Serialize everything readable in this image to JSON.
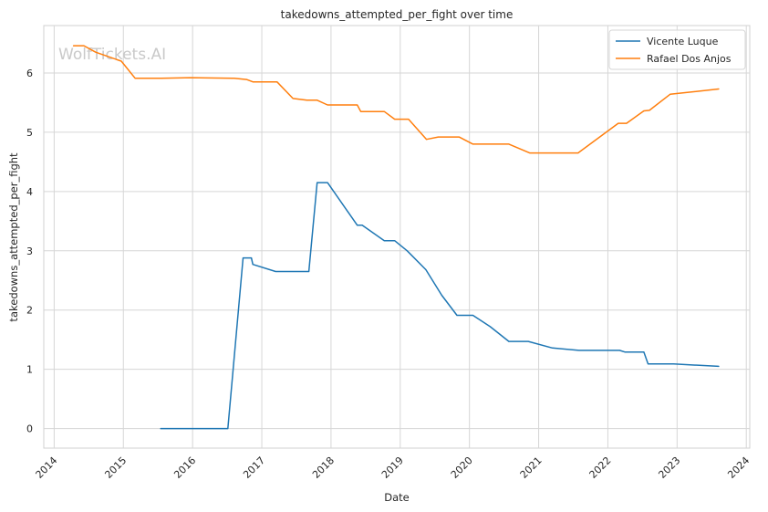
{
  "chart_data": {
    "type": "line",
    "title": "takedowns_attempted_per_fight over time",
    "xlabel": "Date",
    "ylabel": "takedowns_attempted_per_fight",
    "watermark": "WolfTickets.AI",
    "xlim": [
      2013.85,
      2024.05
    ],
    "ylim": [
      -0.33,
      6.8
    ],
    "x_ticks": [
      2014,
      2015,
      2016,
      2017,
      2018,
      2019,
      2020,
      2021,
      2022,
      2023,
      2024
    ],
    "x_tick_labels": [
      "2014",
      "2015",
      "2016",
      "2017",
      "2018",
      "2019",
      "2020",
      "2021",
      "2022",
      "2023",
      "2024"
    ],
    "y_ticks": [
      0,
      1,
      2,
      3,
      4,
      5,
      6
    ],
    "y_tick_labels": [
      "0",
      "1",
      "2",
      "3",
      "4",
      "5",
      "6"
    ],
    "grid": true,
    "legend": "top-right",
    "series": [
      {
        "name": "Vicente Luque",
        "color": "#1f77b4",
        "points": [
          [
            2015.54,
            0
          ],
          [
            2016.51,
            0
          ],
          [
            2016.73,
            2.88
          ],
          [
            2016.85,
            2.88
          ],
          [
            2016.87,
            2.77
          ],
          [
            2017.2,
            2.65
          ],
          [
            2017.68,
            2.65
          ],
          [
            2017.8,
            4.15
          ],
          [
            2017.95,
            4.15
          ],
          [
            2018.38,
            3.43
          ],
          [
            2018.45,
            3.43
          ],
          [
            2018.77,
            3.17
          ],
          [
            2018.92,
            3.17
          ],
          [
            2019.1,
            3.0
          ],
          [
            2019.37,
            2.68
          ],
          [
            2019.6,
            2.25
          ],
          [
            2019.82,
            1.91
          ],
          [
            2020.05,
            1.91
          ],
          [
            2020.3,
            1.72
          ],
          [
            2020.57,
            1.47
          ],
          [
            2020.85,
            1.47
          ],
          [
            2021.2,
            1.36
          ],
          [
            2021.58,
            1.32
          ],
          [
            2022.17,
            1.32
          ],
          [
            2022.25,
            1.29
          ],
          [
            2022.52,
            1.29
          ],
          [
            2022.58,
            1.09
          ],
          [
            2022.95,
            1.09
          ],
          [
            2023.6,
            1.05
          ]
        ]
      },
      {
        "name": "Rafael Dos Anjos",
        "color": "#ff7f0e",
        "points": [
          [
            2014.28,
            6.46
          ],
          [
            2014.43,
            6.46
          ],
          [
            2014.6,
            6.35
          ],
          [
            2014.97,
            6.2
          ],
          [
            2015.17,
            5.91
          ],
          [
            2015.55,
            5.91
          ],
          [
            2015.97,
            5.92
          ],
          [
            2016.6,
            5.91
          ],
          [
            2016.78,
            5.89
          ],
          [
            2016.87,
            5.85
          ],
          [
            2017.22,
            5.85
          ],
          [
            2017.45,
            5.57
          ],
          [
            2017.65,
            5.54
          ],
          [
            2017.8,
            5.54
          ],
          [
            2017.95,
            5.46
          ],
          [
            2018.38,
            5.46
          ],
          [
            2018.43,
            5.35
          ],
          [
            2018.77,
            5.35
          ],
          [
            2018.92,
            5.22
          ],
          [
            2019.12,
            5.22
          ],
          [
            2019.38,
            4.88
          ],
          [
            2019.55,
            4.92
          ],
          [
            2019.85,
            4.92
          ],
          [
            2020.05,
            4.8
          ],
          [
            2020.57,
            4.8
          ],
          [
            2020.87,
            4.65
          ],
          [
            2021.57,
            4.65
          ],
          [
            2022.15,
            5.15
          ],
          [
            2022.27,
            5.15
          ],
          [
            2022.52,
            5.36
          ],
          [
            2022.6,
            5.37
          ],
          [
            2022.9,
            5.64
          ],
          [
            2023.6,
            5.73
          ]
        ]
      }
    ]
  }
}
